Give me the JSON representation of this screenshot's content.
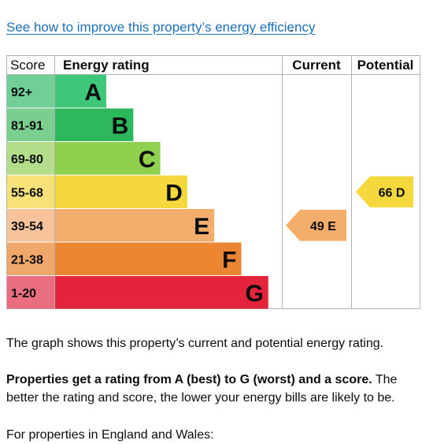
{
  "link": {
    "text": "See how to improve this property’s energy efficiency",
    "after": "."
  },
  "chart_data": {
    "type": "bar",
    "headers": {
      "score": "Score",
      "rating": "Energy rating",
      "current": "Current",
      "potential": "Potential"
    },
    "bands": [
      {
        "score": "92+",
        "letter": "A",
        "color": "#3ec67a",
        "score_bg": "#6fcf97"
      },
      {
        "score": "81-91",
        "letter": "B",
        "color": "#2db85e",
        "score_bg": "#7bcf8e"
      },
      {
        "score": "69-80",
        "letter": "C",
        "color": "#8fd14f",
        "score_bg": "#b3dd8a"
      },
      {
        "score": "55-68",
        "letter": "D",
        "color": "#f5d83b",
        "score_bg": "#f7e27a"
      },
      {
        "score": "39-54",
        "letter": "E",
        "color": "#f3ae6b",
        "score_bg": "#f6c39a"
      },
      {
        "score": "21-38",
        "letter": "F",
        "color": "#ec8632",
        "score_bg": "#f0a76a"
      },
      {
        "score": "1-20",
        "letter": "G",
        "color": "#e3243b",
        "score_bg": "#ea6e80"
      }
    ],
    "current": {
      "value": 49,
      "letter": "E",
      "label": "49 E",
      "color": "#f3ae6b"
    },
    "potential": {
      "value": 66,
      "letter": "D",
      "label": "66 D",
      "color": "#f5d83b"
    }
  },
  "paragraphs": {
    "p1": "The graph shows this property’s current and potential energy rating.",
    "p2_bold": "Properties get a rating from A (best) to G (worst) and a score.",
    "p2_rest": " The better the rating and score, the lower your energy bills are likely to be.",
    "p3": "For properties in England and Wales:"
  }
}
